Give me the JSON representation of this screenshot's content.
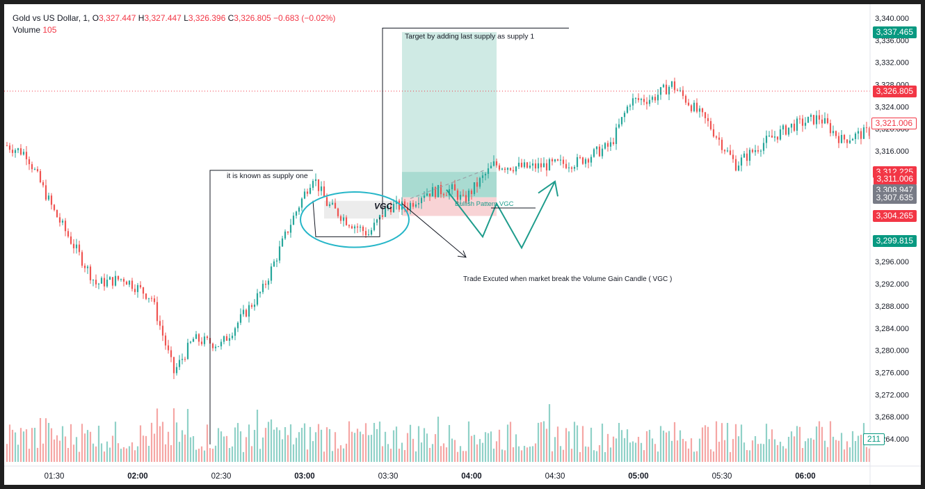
{
  "legend": {
    "symbol": "Gold vs US Dollar, 1,",
    "o_label": "O",
    "o_value": "3,327.447",
    "h_label": "H",
    "h_value": "3,327.447",
    "l_label": "L",
    "l_value": "3,326.396",
    "c_label": "C",
    "c_value": "3,326.805",
    "change": "−0.683 (−0.02%)",
    "volume_label": "Volume",
    "volume_value": "105"
  },
  "annotations": {
    "supply_one": "it is known as supply one",
    "target": "Target by adding last supply as supply 1",
    "vgc": "VGC",
    "bullish_pattern": "Bullish Pattern VGC",
    "trade_executed": "Trade Excuted when market break the Volume Gain Candle ( VGC )"
  },
  "price_tags": [
    {
      "text": "3,337.465",
      "value": 3337.465,
      "style": "green"
    },
    {
      "text": "3,326.805",
      "value": 3326.805,
      "style": "red"
    },
    {
      "text": "3,321.006",
      "value": 3321.006,
      "style": "redo"
    },
    {
      "text": "3,312.225",
      "value": 3312.225,
      "style": "red"
    },
    {
      "text": "3,311.006",
      "value": 3311.006,
      "style": "red"
    },
    {
      "text": "3,308.947",
      "value": 3308.947,
      "style": "gray"
    },
    {
      "text": "3,307.635",
      "value": 3307.635,
      "style": "gray"
    },
    {
      "text": "3,304.265",
      "value": 3304.265,
      "style": "red"
    },
    {
      "text": "3,299.815",
      "value": 3299.815,
      "style": "green"
    }
  ],
  "volume_tag": "211",
  "colors": {
    "up": "#26a69a",
    "down": "#ef5350",
    "up_volume": "#8fd1c7",
    "down_volume": "#f5a6a4",
    "target_zone": "#cfeae4",
    "stop_zone": "#f8d3d5",
    "circle": "#26b6c8",
    "pattern": "#1e9c8c",
    "current_price_line": "#f23645"
  },
  "chart_data": {
    "type": "candlestick",
    "symbol": "Gold vs US Dollar",
    "interval": "1",
    "y_axis": {
      "min": 3260,
      "max": 3342,
      "ticks": [
        "3,340.000",
        "3,336.000",
        "3,332.000",
        "3,328.000",
        "3,324.000",
        "3,320.000",
        "3,316.000",
        "3,312.000",
        "3,308.000",
        "3,304.000",
        "3,300.000",
        "3,296.000",
        "3,292.000",
        "3,288.000",
        "3,284.000",
        "3,280.000",
        "3,276.000",
        "3,272.000",
        "3,268.000",
        "3,264.000"
      ]
    },
    "x_axis": {
      "ticks": [
        "01:30",
        "02:00",
        "02:30",
        "03:00",
        "03:30",
        "04:00",
        "04:30",
        "05:00",
        "05:30",
        "06:00"
      ],
      "bold_ticks": [
        "02:00",
        "03:00",
        "04:00",
        "05:00",
        "06:00"
      ],
      "start_time": "01:13",
      "end_time": "06:23",
      "minutes_per_bar": 1
    },
    "grid": false,
    "current_price": 3326.805,
    "price_path": [
      [
        "01:13",
        3317.0
      ],
      [
        "01:20",
        3315.5
      ],
      [
        "01:30",
        3305.0
      ],
      [
        "01:45",
        3292.0
      ],
      [
        "01:55",
        3293.0
      ],
      [
        "02:05",
        3289.5
      ],
      [
        "02:13",
        3276.0
      ],
      [
        "02:20",
        3282.0
      ],
      [
        "02:30",
        3281.0
      ],
      [
        "02:45",
        3291.0
      ],
      [
        "02:55",
        3303.0
      ],
      [
        "03:03",
        3311.5
      ],
      [
        "03:08",
        3306.5
      ],
      [
        "03:15",
        3303.5
      ],
      [
        "03:23",
        3301.0
      ],
      [
        "03:30",
        3306.0
      ],
      [
        "03:37",
        3306.0
      ],
      [
        "03:43",
        3308.5
      ],
      [
        "03:53",
        3309.0
      ],
      [
        "03:57",
        3307.0
      ],
      [
        "04:08",
        3313.5
      ],
      [
        "04:20",
        3313.0
      ],
      [
        "04:38",
        3314.0
      ],
      [
        "04:50",
        3317.0
      ],
      [
        "04:57",
        3325.0
      ],
      [
        "05:05",
        3325.5
      ],
      [
        "05:12",
        3328.0
      ],
      [
        "05:25",
        3321.0
      ],
      [
        "05:35",
        3313.5
      ],
      [
        "05:45",
        3317.5
      ],
      [
        "05:55",
        3320.5
      ],
      [
        "06:05",
        3322.0
      ],
      [
        "06:13",
        3318.0
      ],
      [
        "06:23",
        3319.5
      ]
    ]
  }
}
